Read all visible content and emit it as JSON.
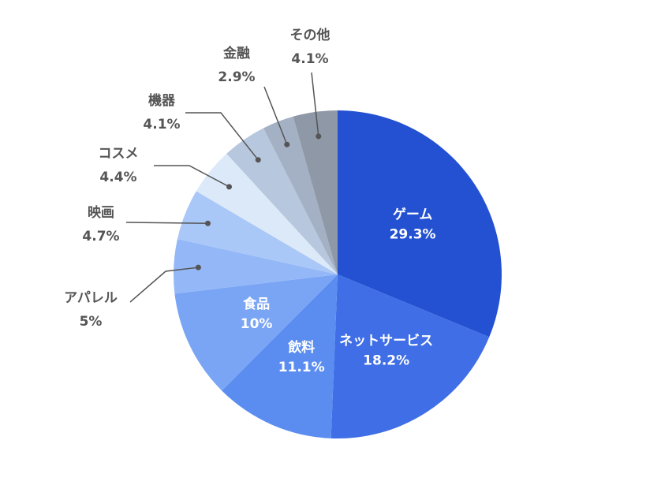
{
  "chart_data": {
    "type": "pie",
    "categories": [
      "ゲーム",
      "ネットサービス",
      "飲料",
      "食品",
      "アパレル",
      "映画",
      "コスメ",
      "機器",
      "金融",
      "その他"
    ],
    "values": [
      29.3,
      18.2,
      11.1,
      10,
      5,
      4.7,
      4.4,
      4.1,
      2.9,
      4.1
    ],
    "value_labels": [
      "29.3%",
      "18.2%",
      "11.1%",
      "10%",
      "5%",
      "4.7%",
      "4.4%",
      "4.1%",
      "2.9%",
      "4.1%"
    ],
    "colors": [
      "#2451d1",
      "#3f6ee6",
      "#5b8df0",
      "#7aa5f5",
      "#94b8f7",
      "#a9c7f7",
      "#dce9f9",
      "#b7c7dd",
      "#a4b1c4",
      "#8e98a6"
    ]
  }
}
